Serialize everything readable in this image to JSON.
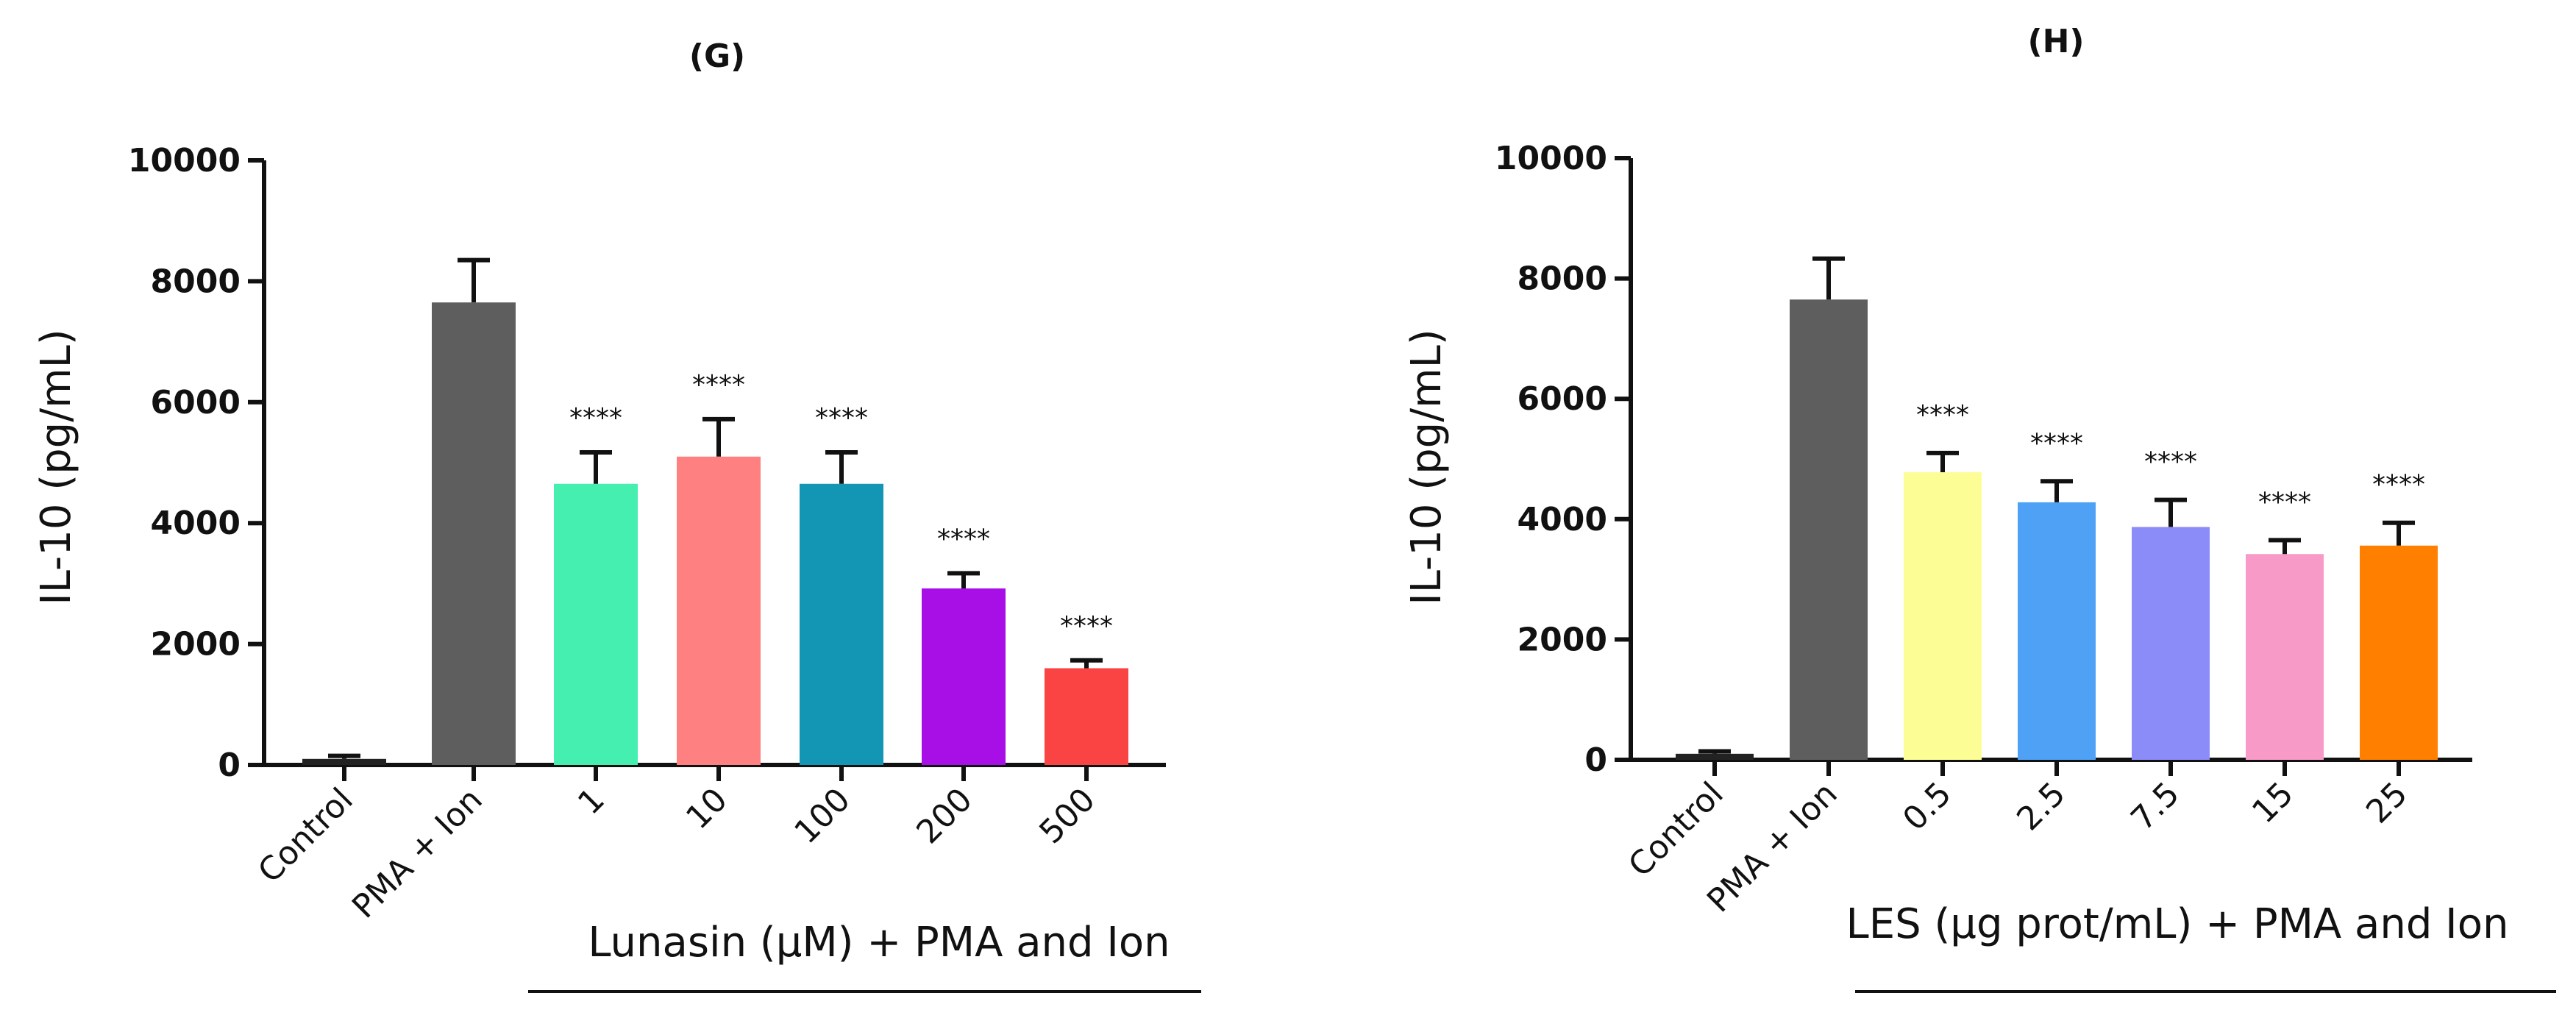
{
  "chart_data": [
    {
      "type": "bar",
      "title": "(G)",
      "ylabel": "IL-10 (pg/mL)",
      "group_label": "Lunasin (μM)  + PMA and Ion",
      "ylim": [
        0,
        10000
      ],
      "yticks": [
        0,
        2000,
        4000,
        6000,
        8000,
        10000
      ],
      "categories": [
        "Control",
        "PMA + Ion",
        "1",
        "10",
        "100",
        "200",
        "500"
      ],
      "values": [
        100,
        7650,
        4650,
        5100,
        4650,
        2920,
        1600
      ],
      "errors": [
        50,
        700,
        520,
        620,
        520,
        250,
        130
      ],
      "significance": [
        "",
        "",
        "****",
        "****",
        "****",
        "****",
        "****"
      ],
      "colors": [
        "#222222",
        "#5e5e5e",
        "#44efb0",
        "#ff8080",
        "#1296b3",
        "#a80ee6",
        "#fa4343"
      ]
    },
    {
      "type": "bar",
      "title": "(H)",
      "ylabel": "IL-10 (pg/mL)",
      "group_label": "LES (μg prot/mL) + PMA and Ion",
      "ylim": [
        0,
        10000
      ],
      "yticks": [
        0,
        2000,
        4000,
        6000,
        8000,
        10000
      ],
      "categories": [
        "Control",
        "PMA + Ion",
        "0.5",
        "2.5",
        "7.5",
        "15",
        "25"
      ],
      "values": [
        100,
        7650,
        4780,
        4280,
        3870,
        3420,
        3560
      ],
      "errors": [
        40,
        680,
        320,
        350,
        450,
        230,
        380
      ],
      "significance": [
        "",
        "",
        "****",
        "****",
        "****",
        "****",
        "****"
      ],
      "colors": [
        "#222222",
        "#5e5e5e",
        "#fdfd96",
        "#4ea1f5",
        "#8c8cf8",
        "#f89ac8",
        "#ff7f00"
      ]
    }
  ]
}
